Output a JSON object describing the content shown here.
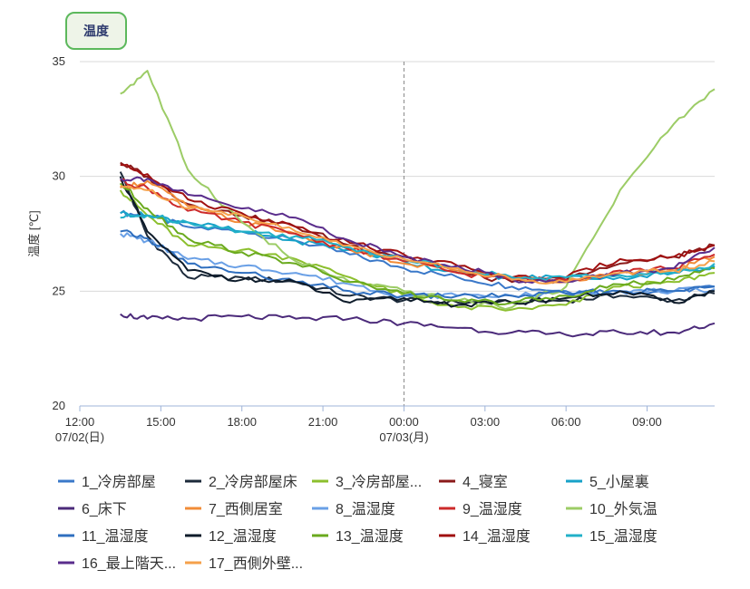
{
  "tab": {
    "label": "温度"
  },
  "chart_data": {
    "type": "line",
    "ylabel": "温度 [℃]",
    "ylim": [
      20,
      35
    ],
    "yticks": [
      "35",
      "30",
      "25",
      "20"
    ],
    "x_range_hours": [
      12,
      35.5
    ],
    "xticks": [
      {
        "hour": 12,
        "label": "12:00",
        "sub": "07/02(日)"
      },
      {
        "hour": 15,
        "label": "15:00",
        "sub": ""
      },
      {
        "hour": 18,
        "label": "18:00",
        "sub": ""
      },
      {
        "hour": 21,
        "label": "21:00",
        "sub": ""
      },
      {
        "hour": 24,
        "label": "00:00",
        "sub": "07/03(月)"
      },
      {
        "hour": 27,
        "label": "03:00",
        "sub": ""
      },
      {
        "hour": 30,
        "label": "06:00",
        "sub": ""
      },
      {
        "hour": 33,
        "label": "09:00",
        "sub": ""
      }
    ],
    "x_hours": [
      13.5,
      14.5,
      16,
      18,
      20,
      22,
      24,
      26,
      28,
      30,
      32,
      34,
      35.5
    ],
    "series": [
      {
        "name": "1_冷房部屋",
        "color": "#3a78c9",
        "values": [
          28.4,
          28.3,
          27.8,
          27.6,
          27.2,
          26.6,
          26.0,
          25.6,
          25.2,
          25.0,
          25.0,
          25.0,
          25.2
        ]
      },
      {
        "name": "2_冷房部屋床",
        "color": "#1c2a3a",
        "values": [
          30.2,
          27.4,
          25.6,
          25.6,
          25.4,
          24.8,
          24.6,
          24.5,
          24.5,
          24.6,
          24.8,
          24.6,
          24.9
        ]
      },
      {
        "name": "3_冷房部屋...",
        "color": "#8cbf2e",
        "values": [
          29.4,
          28.3,
          27.0,
          26.8,
          26.4,
          25.6,
          24.8,
          24.3,
          24.2,
          24.4,
          25.2,
          25.4,
          25.8
        ]
      },
      {
        "name": "4_寝室",
        "color": "#8b1a1a",
        "values": [
          30.6,
          30.0,
          28.8,
          28.3,
          27.8,
          27.0,
          26.5,
          25.8,
          25.4,
          25.5,
          26.2,
          26.5,
          27.0
        ]
      },
      {
        "name": "5_小屋裏",
        "color": "#17a2c8",
        "values": [
          28.4,
          28.3,
          28.0,
          27.6,
          27.2,
          26.8,
          26.3,
          25.8,
          25.6,
          25.6,
          25.6,
          25.8,
          26.1
        ]
      },
      {
        "name": "6_床下",
        "color": "#4b2a7a",
        "values": [
          24.0,
          23.8,
          23.8,
          23.9,
          23.8,
          23.8,
          23.6,
          23.4,
          23.2,
          23.1,
          23.2,
          23.2,
          23.6
        ]
      },
      {
        "name": "7_西側居室",
        "color": "#f28c38",
        "values": [
          29.5,
          29.8,
          28.7,
          28.0,
          27.5,
          26.8,
          26.2,
          25.9,
          25.6,
          25.4,
          25.8,
          25.9,
          26.5
        ]
      },
      {
        "name": "8_温湿度",
        "color": "#6aa0e6",
        "values": [
          27.5,
          27.2,
          26.4,
          26.1,
          25.8,
          25.3,
          24.8,
          24.8,
          24.8,
          24.9,
          25.0,
          25.0,
          25.1
        ]
      },
      {
        "name": "9_温湿度",
        "color": "#cc2a2a",
        "values": [
          29.8,
          29.5,
          28.5,
          28.0,
          27.5,
          26.8,
          26.3,
          25.8,
          25.5,
          25.5,
          25.9,
          26.0,
          26.6
        ]
      },
      {
        "name": "10_外気温",
        "color": "#9ccc66",
        "values": [
          33.6,
          34.6,
          30.3,
          28.0,
          26.3,
          25.4,
          25.0,
          24.6,
          24.3,
          25.2,
          29.4,
          32.3,
          33.8
        ]
      },
      {
        "name": "11_温湿度",
        "color": "#2f6fbf",
        "values": [
          27.6,
          27.3,
          26.2,
          25.8,
          25.4,
          25.0,
          24.8,
          24.8,
          24.8,
          24.9,
          25.0,
          25.0,
          25.2
        ]
      },
      {
        "name": "12_温湿度",
        "color": "#0d1b2a",
        "values": [
          30.0,
          27.6,
          25.9,
          25.5,
          25.4,
          24.5,
          24.7,
          24.4,
          24.5,
          24.7,
          25.0,
          24.5,
          25.0
        ]
      },
      {
        "name": "13_温湿度",
        "color": "#6aaa1e",
        "values": [
          29.7,
          28.6,
          27.3,
          26.7,
          26.2,
          25.4,
          24.9,
          24.6,
          24.5,
          24.8,
          25.3,
          25.5,
          26.0
        ]
      },
      {
        "name": "14_温湿度",
        "color": "#a01010",
        "values": [
          30.5,
          30.1,
          29.0,
          28.4,
          27.8,
          27.1,
          26.6,
          26.1,
          25.6,
          25.6,
          26.4,
          26.5,
          27.0
        ]
      },
      {
        "name": "15_温湿度",
        "color": "#22b0c8",
        "values": [
          28.2,
          28.3,
          28.0,
          27.6,
          27.4,
          26.9,
          26.4,
          26.0,
          25.6,
          25.6,
          25.7,
          25.8,
          26.2
        ]
      },
      {
        "name": "16_最上階天...",
        "color": "#5a2d8c",
        "values": [
          29.9,
          29.9,
          29.2,
          28.6,
          28.2,
          27.2,
          26.5,
          26.1,
          25.5,
          25.4,
          25.8,
          26.0,
          26.9
        ]
      },
      {
        "name": "17_西側外壁...",
        "color": "#f5a04a",
        "values": [
          29.6,
          29.4,
          28.6,
          28.3,
          27.6,
          27.0,
          26.4,
          26.0,
          25.5,
          25.4,
          25.8,
          25.9,
          26.3
        ]
      }
    ],
    "legend_position": "bottom",
    "grid": true
  }
}
